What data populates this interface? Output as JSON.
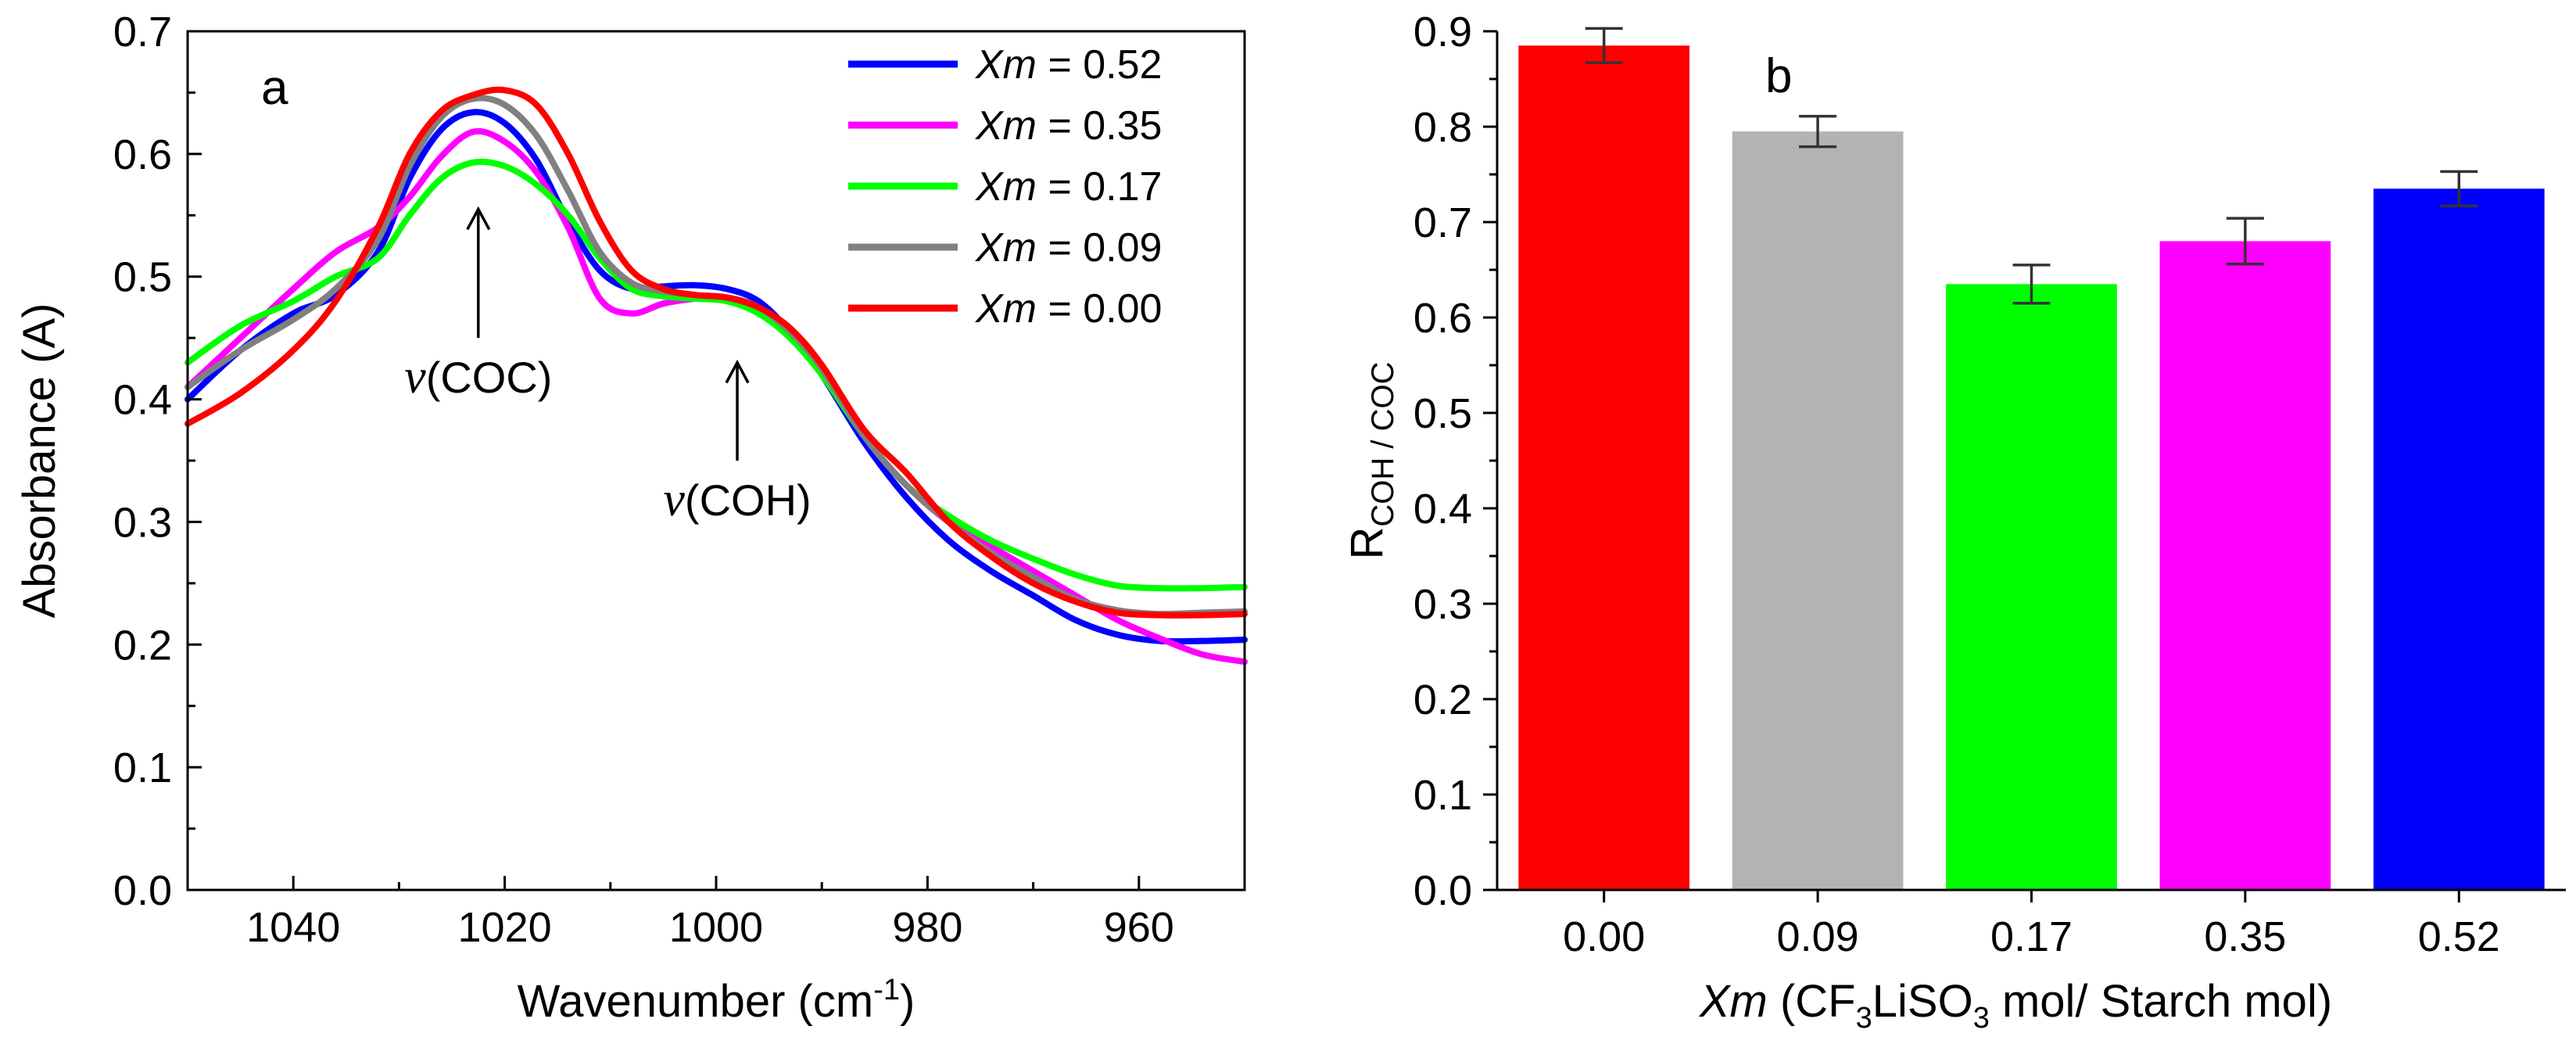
{
  "chart_data": [
    {
      "panel": "a",
      "type": "line",
      "title": "",
      "xlabel": "Wavenumber (cm",
      "xlabel_sup": "-1",
      "xlabel_end": ")",
      "ylabel": "Absorbance (A)",
      "xlim": [
        1050,
        950
      ],
      "ylim": [
        0.0,
        0.7
      ],
      "x_ticks": [
        1040,
        1020,
        1000,
        980,
        960
      ],
      "x_tick_labels": [
        "1040",
        "1020",
        "1000",
        "980",
        "960"
      ],
      "y_ticks": [
        0.0,
        0.1,
        0.2,
        0.3,
        0.4,
        0.5,
        0.6,
        0.7
      ],
      "y_tick_labels": [
        "0.0",
        "0.1",
        "0.2",
        "0.3",
        "0.4",
        "0.5",
        "0.6",
        "0.7"
      ],
      "grid": false,
      "legend_position": "top-right",
      "annotations": [
        {
          "italic": "v",
          "text": "(COC)",
          "arrow_x": 1022.5,
          "arrow_from_y": 0.45,
          "arrow_to_y": 0.555
        },
        {
          "italic": "v",
          "text": "(COH)",
          "arrow_x": 998,
          "arrow_from_y": 0.35,
          "arrow_to_y": 0.43
        }
      ],
      "series": [
        {
          "name_italic": "Xm",
          "name": " = 0.52",
          "color": "#0000ff",
          "x": [
            1050,
            1045,
            1040,
            1036,
            1032,
            1029,
            1026,
            1023,
            1020,
            1017,
            1014,
            1011,
            1008,
            1005,
            1002,
            999,
            996,
            993,
            990,
            986,
            982,
            978,
            974,
            970,
            966,
            962,
            958,
            954,
            950
          ],
          "y": [
            0.4,
            0.44,
            0.47,
            0.485,
            0.52,
            0.58,
            0.62,
            0.634,
            0.625,
            0.595,
            0.545,
            0.505,
            0.49,
            0.492,
            0.493,
            0.49,
            0.48,
            0.455,
            0.42,
            0.365,
            0.32,
            0.285,
            0.26,
            0.24,
            0.22,
            0.208,
            0.203,
            0.203,
            0.204
          ]
        },
        {
          "name_italic": "Xm",
          "name": " = 0.35",
          "color": "#ff00ff",
          "x": [
            1050,
            1045,
            1040,
            1036,
            1032,
            1029,
            1026,
            1023,
            1020,
            1017,
            1014,
            1011,
            1008,
            1005,
            1002,
            999,
            996,
            993,
            990,
            986,
            982,
            978,
            974,
            970,
            966,
            962,
            958,
            954,
            950
          ],
          "y": [
            0.41,
            0.45,
            0.49,
            0.52,
            0.54,
            0.565,
            0.598,
            0.618,
            0.61,
            0.585,
            0.54,
            0.482,
            0.47,
            0.478,
            0.482,
            0.483,
            0.475,
            0.455,
            0.425,
            0.37,
            0.33,
            0.3,
            0.28,
            0.26,
            0.24,
            0.22,
            0.205,
            0.192,
            0.186
          ]
        },
        {
          "name_italic": "Xm",
          "name": " = 0.17",
          "color": "#00ff00",
          "x": [
            1050,
            1045,
            1040,
            1036,
            1032,
            1029,
            1026,
            1023,
            1020,
            1017,
            1014,
            1011,
            1008,
            1005,
            1002,
            999,
            996,
            993,
            990,
            986,
            982,
            978,
            974,
            970,
            966,
            962,
            958,
            954,
            950
          ],
          "y": [
            0.43,
            0.46,
            0.48,
            0.5,
            0.515,
            0.55,
            0.58,
            0.593,
            0.59,
            0.575,
            0.55,
            0.515,
            0.49,
            0.484,
            0.482,
            0.48,
            0.47,
            0.45,
            0.42,
            0.37,
            0.33,
            0.305,
            0.285,
            0.27,
            0.257,
            0.248,
            0.246,
            0.246,
            0.247
          ]
        },
        {
          "name_italic": "Xm",
          "name": " = 0.09",
          "color": "#808080",
          "x": [
            1050,
            1045,
            1040,
            1036,
            1032,
            1029,
            1026,
            1023,
            1020,
            1017,
            1014,
            1011,
            1008,
            1005,
            1002,
            999,
            996,
            993,
            990,
            986,
            982,
            978,
            974,
            970,
            966,
            962,
            958,
            954,
            950
          ],
          "y": [
            0.41,
            0.44,
            0.465,
            0.49,
            0.53,
            0.59,
            0.63,
            0.645,
            0.64,
            0.615,
            0.57,
            0.52,
            0.495,
            0.488,
            0.485,
            0.483,
            0.475,
            0.455,
            0.425,
            0.37,
            0.33,
            0.3,
            0.275,
            0.255,
            0.237,
            0.228,
            0.225,
            0.226,
            0.227
          ]
        },
        {
          "name_italic": "Xm",
          "name": " = 0.00",
          "color": "#ff0000",
          "x": [
            1050,
            1045,
            1040,
            1036,
            1032,
            1029,
            1026,
            1023,
            1020,
            1017,
            1014,
            1011,
            1008,
            1005,
            1002,
            999,
            996,
            993,
            990,
            986,
            982,
            978,
            974,
            970,
            966,
            962,
            958,
            954,
            950
          ],
          "y": [
            0.38,
            0.405,
            0.44,
            0.48,
            0.54,
            0.6,
            0.635,
            0.648,
            0.652,
            0.64,
            0.6,
            0.545,
            0.505,
            0.49,
            0.485,
            0.483,
            0.475,
            0.458,
            0.428,
            0.375,
            0.34,
            0.3,
            0.272,
            0.25,
            0.235,
            0.226,
            0.224,
            0.224,
            0.225
          ]
        }
      ]
    },
    {
      "panel": "b",
      "type": "bar",
      "title": "",
      "xlabel_italic": "Xm",
      "xlabel_a": " (CF",
      "xlabel_sub": "3",
      "xlabel_b": "LiSO",
      "xlabel_sub2": "3",
      "xlabel_c": " mol/ Starch mol)",
      "ylabel_main": "R",
      "ylabel_sub": "COH / COC",
      "ylim": [
        0.0,
        0.9
      ],
      "y_ticks": [
        0.0,
        0.1,
        0.2,
        0.3,
        0.4,
        0.5,
        0.6,
        0.7,
        0.8,
        0.9
      ],
      "y_tick_labels": [
        "0.0",
        "0.1",
        "0.2",
        "0.3",
        "0.4",
        "0.5",
        "0.6",
        "0.7",
        "0.8",
        "0.9"
      ],
      "categories": [
        "0.00",
        "0.09",
        "0.17",
        "0.35",
        "0.52"
      ],
      "values": [
        0.885,
        0.795,
        0.635,
        0.68,
        0.735
      ],
      "errors": [
        0.018,
        0.016,
        0.02,
        0.024,
        0.018
      ],
      "colors": [
        "#ff0000",
        "#b3b3b3",
        "#00ff00",
        "#ff00ff",
        "#0000ff"
      ],
      "grid": false
    }
  ]
}
